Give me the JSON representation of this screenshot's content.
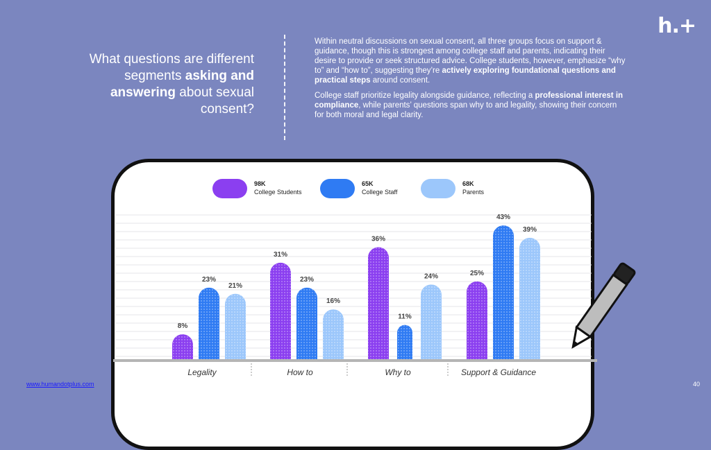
{
  "logo": "h.+",
  "heading": {
    "part1": "What questions are different segments ",
    "bold1": "asking and answering",
    "part2": " about sexual consent?"
  },
  "description": {
    "p1_part1": "Within neutral discussions on sexual consent, all three groups focus on support & guidance, though this is strongest among college staff and parents, indicating their desire to provide or seek structured advice. College students, however, emphasize “why to” and “how to”, suggesting they’re ",
    "p1_bold": "actively exploring foundational questions and practical steps",
    "p1_part2": " around consent.",
    "p2_part1": "College staff prioritize legality alongside guidance, reflecting a ",
    "p2_bold": "professional interest in compliance",
    "p2_part2": ", while parents’ questions span why to and legality, showing their concern for both moral and legal clarity."
  },
  "legend": [
    {
      "count": "98K",
      "label": "College Students",
      "color": "#8b3ff0"
    },
    {
      "count": "65K",
      "label": "College Staff",
      "color": "#2f7bf3"
    },
    {
      "count": "68K",
      "label": "Parents",
      "color": "#9cc7fb"
    }
  ],
  "chart_data": {
    "type": "bar",
    "categories": [
      "Legality",
      "How to",
      "Why to",
      "Support & Guidance"
    ],
    "series": [
      {
        "name": "College Students",
        "values": [
          8,
          31,
          36,
          25
        ],
        "color": "#8b3ff0"
      },
      {
        "name": "College Staff",
        "values": [
          23,
          23,
          11,
          43
        ],
        "color": "#2f7bf3"
      },
      {
        "name": "Parents",
        "values": [
          21,
          16,
          24,
          39
        ],
        "color": "#9cc7fb"
      }
    ],
    "value_suffix": "%",
    "ylim": [
      0,
      45
    ],
    "grid": true,
    "legend_position": "top"
  },
  "footer": {
    "link": "www.humandotplus.com",
    "page": "40"
  }
}
